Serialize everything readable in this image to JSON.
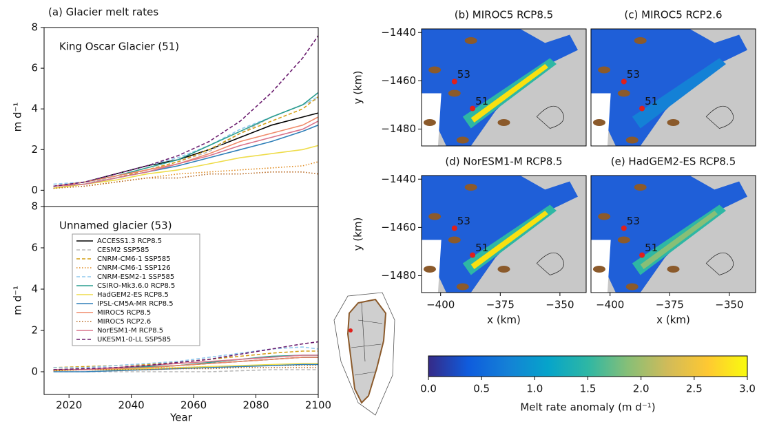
{
  "chart_data": [
    {
      "type": "line",
      "title": "(a) Glacier melt rates",
      "annotation": "King Oscar Glacier (51)",
      "ylabel": "m d⁻¹",
      "x": [
        2015,
        2025,
        2035,
        2045,
        2055,
        2065,
        2075,
        2085,
        2095,
        2100
      ],
      "xlim": [
        2012,
        2100
      ],
      "ylim": [
        -0.8,
        8
      ],
      "yticks": [
        0,
        2,
        4,
        6,
        8
      ],
      "series": [
        {
          "color": "#000000",
          "style": "solid",
          "values": [
            0.2,
            0.4,
            0.8,
            1.2,
            1.5,
            2.0,
            2.6,
            3.2,
            3.6,
            3.8
          ]
        },
        {
          "color": "#b8b8b8",
          "style": "dashed",
          "values": [
            0.2,
            0.3,
            0.7,
            1.0,
            1.4,
            1.9,
            2.8,
            3.6,
            4.2,
            4.5
          ]
        },
        {
          "color": "#d4a017",
          "style": "dashed",
          "values": [
            0.1,
            0.3,
            0.6,
            1.0,
            1.4,
            2.0,
            2.8,
            3.4,
            4.0,
            4.6
          ]
        },
        {
          "color": "#e08a1e",
          "style": "dotted",
          "values": [
            0.1,
            0.2,
            0.4,
            0.6,
            0.8,
            0.9,
            1.0,
            1.1,
            1.2,
            1.4
          ]
        },
        {
          "color": "#8fc8ee",
          "style": "dashed",
          "values": [
            0.3,
            0.4,
            0.8,
            1.2,
            1.6,
            2.2,
            3.0,
            3.6,
            4.2,
            4.6
          ]
        },
        {
          "color": "#2a9d8f",
          "style": "solid",
          "values": [
            0.2,
            0.4,
            0.7,
            1.1,
            1.5,
            2.2,
            2.9,
            3.6,
            4.2,
            4.8
          ]
        },
        {
          "color": "#eedc4a",
          "style": "solid",
          "values": [
            0.1,
            0.3,
            0.5,
            0.8,
            1.0,
            1.3,
            1.6,
            1.8,
            2.0,
            2.2
          ]
        },
        {
          "color": "#2f7fb8",
          "style": "solid",
          "values": [
            0.2,
            0.3,
            0.6,
            0.9,
            1.2,
            1.6,
            2.0,
            2.4,
            2.9,
            3.2
          ]
        },
        {
          "color": "#f08a6a",
          "style": "solid",
          "values": [
            0.2,
            0.4,
            0.7,
            1.0,
            1.3,
            1.8,
            2.4,
            2.8,
            3.2,
            3.6
          ]
        },
        {
          "color": "#b5651d",
          "style": "dotted",
          "values": [
            0.1,
            0.2,
            0.4,
            0.6,
            0.6,
            0.8,
            0.8,
            0.9,
            0.9,
            0.8
          ]
        },
        {
          "color": "#d9738a",
          "style": "solid",
          "values": [
            0.2,
            0.3,
            0.6,
            0.9,
            1.3,
            1.7,
            2.2,
            2.6,
            3.0,
            3.4
          ]
        },
        {
          "color": "#6a1b6e",
          "style": "dashed",
          "values": [
            0.2,
            0.4,
            0.8,
            1.2,
            1.7,
            2.4,
            3.4,
            4.8,
            6.5,
            7.6
          ]
        }
      ]
    },
    {
      "type": "line",
      "annotation": "Unnamed glacier (53)",
      "ylabel": "m d⁻¹",
      "xlabel": "Year",
      "x": [
        2015,
        2025,
        2035,
        2045,
        2055,
        2065,
        2075,
        2085,
        2095,
        2100
      ],
      "xlim": [
        2012,
        2100
      ],
      "ylim": [
        -1.1,
        8
      ],
      "xticks": [
        2020,
        2040,
        2060,
        2080,
        2100
      ],
      "yticks": [
        0,
        2,
        4,
        6,
        8
      ],
      "series": [
        {
          "name": "ACCESS1.3 RCP8.5",
          "color": "#000000",
          "style": "solid",
          "values": [
            0.1,
            0.1,
            0.15,
            0.2,
            0.3,
            0.4,
            0.5,
            0.6,
            0.7,
            0.7
          ]
        },
        {
          "name": "CESM2 SSP585",
          "color": "#b8b8b8",
          "style": "dashed",
          "values": [
            0,
            0,
            0,
            0,
            0,
            0,
            0.05,
            0.1,
            0.1,
            0.1
          ]
        },
        {
          "name": "CNRM-CM6-1 SSP585",
          "color": "#d4a017",
          "style": "dashed",
          "values": [
            0.2,
            0.25,
            0.3,
            0.35,
            0.45,
            0.6,
            0.75,
            0.9,
            1.0,
            1.0
          ]
        },
        {
          "name": "CNRM-CM6-1 SSP126",
          "color": "#e08a1e",
          "style": "dotted",
          "values": [
            0.1,
            0.15,
            0.15,
            0.2,
            0.2,
            0.25,
            0.25,
            0.3,
            0.3,
            0.3
          ]
        },
        {
          "name": "CNRM-ESM2-1 SSP585",
          "color": "#8fc8ee",
          "style": "dashed",
          "values": [
            0.2,
            0.2,
            0.3,
            0.4,
            0.5,
            0.7,
            0.9,
            1.1,
            1.2,
            1.1
          ]
        },
        {
          "name": "CSIRO-Mk3.6.0 RCP8.5",
          "color": "#2a9d8f",
          "style": "solid",
          "values": [
            0.1,
            0.1,
            0.2,
            0.25,
            0.3,
            0.45,
            0.6,
            0.75,
            0.8,
            0.8
          ]
        },
        {
          "name": "HadGEM2-ES RCP8.5",
          "color": "#eedc4a",
          "style": "solid",
          "values": [
            0.05,
            0.1,
            0.1,
            0.15,
            0.2,
            0.25,
            0.3,
            0.35,
            0.4,
            0.4
          ]
        },
        {
          "name": "IPSL-CM5A-MR RCP8.5",
          "color": "#2f7fb8",
          "style": "solid",
          "values": [
            0,
            0,
            0.05,
            0.1,
            0.15,
            0.2,
            0.25,
            0.3,
            0.35,
            0.35
          ]
        },
        {
          "name": "MIROC5 RCP8.5",
          "color": "#f08a6a",
          "style": "solid",
          "values": [
            0.1,
            0.1,
            0.15,
            0.2,
            0.3,
            0.4,
            0.5,
            0.6,
            0.7,
            0.7
          ]
        },
        {
          "name": "MIROC5 RCP2.6",
          "color": "#b5651d",
          "style": "dotted",
          "values": [
            0.05,
            0.1,
            0.1,
            0.1,
            0.15,
            0.15,
            0.2,
            0.2,
            0.2,
            0.2
          ]
        },
        {
          "name": "NorESM1-M RCP8.5",
          "color": "#d9738a",
          "style": "solid",
          "values": [
            0.1,
            0.1,
            0.2,
            0.3,
            0.4,
            0.5,
            0.6,
            0.7,
            0.8,
            0.8
          ]
        },
        {
          "name": "UKESM1-0-LL SSP585",
          "color": "#6a1b6e",
          "style": "dashed",
          "values": [
            0.1,
            0.15,
            0.2,
            0.3,
            0.45,
            0.6,
            0.85,
            1.1,
            1.35,
            1.45
          ]
        }
      ]
    },
    {
      "type": "map",
      "title": "(b) MIROC5 RCP8.5",
      "ylabel": "y (km)",
      "annotations": [
        "53",
        "51"
      ],
      "xlim": [
        -408,
        -339
      ],
      "ylim": [
        -1487,
        -1438.5
      ],
      "yticks": [
        {
          "value": -1440,
          "label": "−1440"
        },
        {
          "value": -1460,
          "label": "−1460"
        },
        {
          "value": -1480,
          "label": "−1480"
        }
      ]
    },
    {
      "type": "map",
      "title": "(c) MIROC5 RCP2.6",
      "annotations": [
        "53",
        "51"
      ],
      "xlim": [
        -408,
        -339
      ],
      "ylim": [
        -1487,
        -1438.5
      ]
    },
    {
      "type": "map",
      "title": "(d) NorESM1-M RCP8.5",
      "ylabel": "y (km)",
      "xlabel": "x (km)",
      "annotations": [
        "53",
        "51"
      ],
      "xlim": [
        -408,
        -339
      ],
      "ylim": [
        -1487,
        -1438.5
      ],
      "xticks": [
        {
          "value": -400,
          "label": "−400"
        },
        {
          "value": -375,
          "label": "−375"
        },
        {
          "value": -350,
          "label": "−350"
        }
      ],
      "yticks": [
        {
          "value": -1440,
          "label": "−1440"
        },
        {
          "value": -1460,
          "label": "−1460"
        },
        {
          "value": -1480,
          "label": "−1480"
        }
      ]
    },
    {
      "type": "map",
      "title": "(e) HadGEM2-ES RCP8.5",
      "xlabel": "x (km)",
      "annotations": [
        "53",
        "51"
      ],
      "xlim": [
        -408,
        -339
      ],
      "ylim": [
        -1487,
        -1438.5
      ],
      "xticks": [
        {
          "value": -400,
          "label": "−400"
        },
        {
          "value": -375,
          "label": "−375"
        },
        {
          "value": -350,
          "label": "−350"
        }
      ]
    },
    {
      "type": "colorbar",
      "label": "Melt rate anomaly (m d⁻¹)",
      "lim": [
        0,
        3
      ],
      "colors": [
        "#352a87",
        "#0f5cdd",
        "#1481d6",
        "#06a4ca",
        "#2eb7a4",
        "#87bf77",
        "#d1bb59",
        "#fec832",
        "#f9fb0e"
      ],
      "ticks": [
        {
          "value": 0,
          "label": "0.0"
        },
        {
          "value": 0.5,
          "label": "0.5"
        },
        {
          "value": 1,
          "label": "1.0"
        },
        {
          "value": 1.5,
          "label": "1.5"
        },
        {
          "value": 2,
          "label": "2.0"
        },
        {
          "value": 2.5,
          "label": "2.5"
        },
        {
          "value": 3,
          "label": "3.0"
        }
      ]
    }
  ]
}
